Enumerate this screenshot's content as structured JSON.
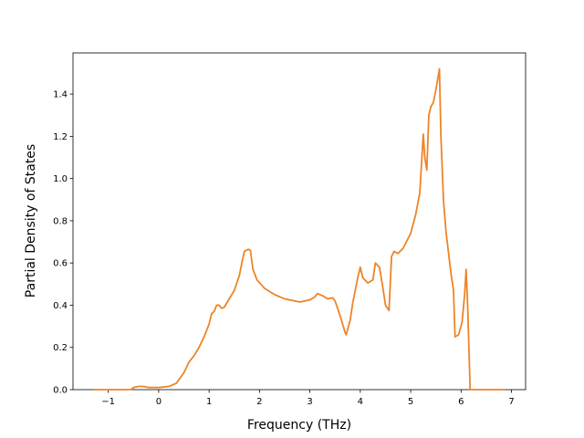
{
  "chart_data": {
    "type": "line",
    "xlabel": "Frequency (THz)",
    "ylabel": "Partial Density of States",
    "color": "#ee8427",
    "x": [
      -1.29,
      -0.55,
      -0.5,
      -0.4,
      -0.3,
      -0.2,
      0,
      0.2,
      0.35,
      0.5,
      0.6,
      0.7,
      0.8,
      0.9,
      1.0,
      1.05,
      1.1,
      1.15,
      1.2,
      1.25,
      1.3,
      1.4,
      1.5,
      1.6,
      1.65,
      1.7,
      1.78,
      1.82,
      1.87,
      1.95,
      2.1,
      2.3,
      2.5,
      2.8,
      3.0,
      3.1,
      3.15,
      3.25,
      3.35,
      3.45,
      3.5,
      3.6,
      3.7,
      3.72,
      3.8,
      3.85,
      3.9,
      3.95,
      4.0,
      4.05,
      4.15,
      4.25,
      4.3,
      4.38,
      4.45,
      4.5,
      4.57,
      4.62,
      4.67,
      4.75,
      4.85,
      5.0,
      5.1,
      5.18,
      5.25,
      5.28,
      5.32,
      5.36,
      5.4,
      5.45,
      5.5,
      5.57,
      5.6,
      5.65,
      5.7,
      5.8,
      5.85,
      5.88,
      5.95,
      6.02,
      6.07,
      6.1,
      6.13,
      6.18,
      6.87
    ],
    "values": [
      0,
      0,
      0.01,
      0.015,
      0.015,
      0.01,
      0.01,
      0.015,
      0.03,
      0.08,
      0.13,
      0.16,
      0.2,
      0.25,
      0.31,
      0.36,
      0.37,
      0.4,
      0.4,
      0.385,
      0.39,
      0.43,
      0.47,
      0.54,
      0.6,
      0.655,
      0.665,
      0.66,
      0.57,
      0.52,
      0.48,
      0.45,
      0.43,
      0.415,
      0.425,
      0.44,
      0.455,
      0.445,
      0.43,
      0.435,
      0.42,
      0.35,
      0.27,
      0.26,
      0.33,
      0.41,
      0.47,
      0.53,
      0.58,
      0.53,
      0.505,
      0.52,
      0.6,
      0.58,
      0.48,
      0.4,
      0.375,
      0.63,
      0.655,
      0.645,
      0.67,
      0.74,
      0.83,
      0.93,
      1.21,
      1.1,
      1.04,
      1.3,
      1.34,
      1.36,
      1.42,
      1.52,
      1.2,
      0.9,
      0.75,
      0.55,
      0.47,
      0.25,
      0.26,
      0.32,
      0.45,
      0.57,
      0.4,
      0,
      0
    ],
    "xlim": [
      -1.7,
      7.28
    ],
    "ylim": [
      0,
      1.595
    ],
    "xticks": [
      {
        "value": -1,
        "label": "−1"
      },
      0,
      1,
      2,
      3,
      4,
      5,
      6,
      7
    ],
    "yticks": [
      {
        "value": 0,
        "label": "0.0"
      },
      0.2,
      0.4,
      0.6,
      0.8,
      {
        "value": 1,
        "label": "1.0"
      },
      1.2,
      1.4
    ]
  }
}
